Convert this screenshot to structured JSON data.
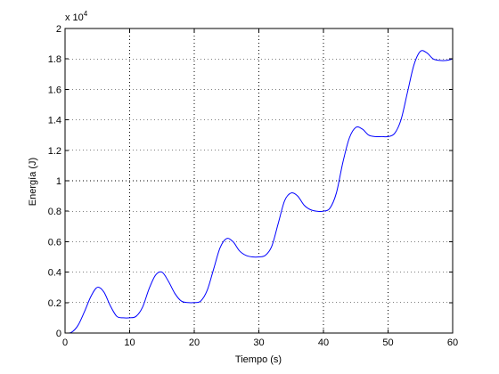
{
  "chart_data": {
    "type": "line",
    "title": "",
    "xlabel": "Tiempo (s)",
    "ylabel": "Energía (J)",
    "y_multiplier": {
      "prefix": "x 10",
      "exponent": "4"
    },
    "xlim": [
      0,
      60
    ],
    "ylim": [
      0,
      2
    ],
    "x_ticks": [
      0,
      10,
      20,
      30,
      40,
      50,
      60
    ],
    "y_ticks": [
      0,
      0.2,
      0.4,
      0.6,
      0.8,
      1,
      1.2,
      1.4,
      1.6,
      1.8,
      2
    ],
    "x_tick_labels": [
      "0",
      "10",
      "20",
      "30",
      "40",
      "50",
      "60"
    ],
    "y_tick_labels": [
      "0",
      "0.2",
      "0.4",
      "0.6",
      "0.8",
      "1",
      "1.2",
      "1.4",
      "1.6",
      "1.8",
      "2"
    ],
    "grid": true,
    "grid_style": "dotted",
    "line_color": "#0000ff",
    "axis_color": "#000000",
    "series": [
      {
        "x": [
          0,
          1,
          2,
          3,
          4,
          5,
          6,
          7,
          8,
          9,
          10,
          11,
          12,
          13,
          14,
          15,
          16,
          17,
          18,
          19,
          20,
          21,
          22,
          23,
          24,
          25,
          26,
          27,
          28,
          29,
          30,
          31,
          32,
          33,
          34,
          35,
          36,
          37,
          38,
          39,
          40,
          41,
          42,
          43,
          44,
          45,
          46,
          47,
          48,
          49,
          50,
          51,
          52,
          53,
          54,
          55,
          56,
          57,
          58,
          59,
          60
        ],
        "values": [
          0,
          0.005,
          0.05,
          0.14,
          0.24,
          0.3,
          0.27,
          0.18,
          0.11,
          0.1,
          0.1,
          0.11,
          0.17,
          0.29,
          0.38,
          0.4,
          0.34,
          0.26,
          0.21,
          0.2,
          0.2,
          0.21,
          0.28,
          0.42,
          0.56,
          0.62,
          0.6,
          0.54,
          0.51,
          0.5,
          0.5,
          0.51,
          0.57,
          0.72,
          0.87,
          0.92,
          0.9,
          0.84,
          0.81,
          0.8,
          0.8,
          0.82,
          0.92,
          1.12,
          1.28,
          1.35,
          1.34,
          1.3,
          1.29,
          1.29,
          1.29,
          1.31,
          1.4,
          1.58,
          1.76,
          1.85,
          1.84,
          1.8,
          1.79,
          1.79,
          1.8
        ]
      }
    ]
  }
}
